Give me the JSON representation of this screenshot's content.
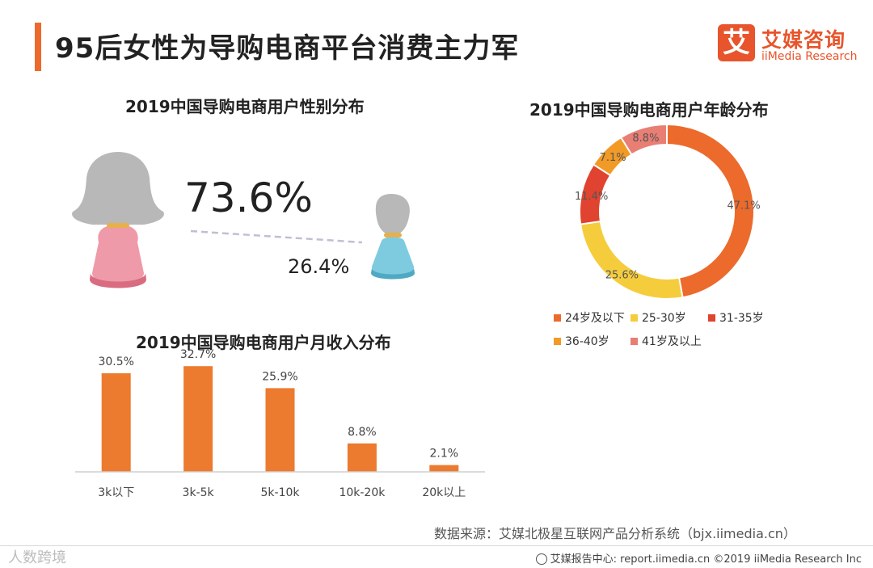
{
  "header": {
    "title": "95后女性为导购电商平台消费主力军"
  },
  "logo": {
    "mark": "艾",
    "cn": "艾媒咨询",
    "en": "iiMedia Research"
  },
  "colors": {
    "accent": "#ec6a2b",
    "female": "#ef9aa8",
    "male": "#7ecbe0",
    "hair": "#b8b8b8",
    "bar": "#ec7a2f"
  },
  "chart_data": [
    {
      "type": "pictogram",
      "title": "2019中国导购电商用户性别分布",
      "labels": [
        "73.6%",
        "26.4%"
      ],
      "categories": [
        "女性",
        "男性"
      ],
      "values": [
        73.6,
        26.4
      ]
    },
    {
      "type": "pie",
      "title": "2019中国导购电商用户年龄分布",
      "categories": [
        "24岁及以下",
        "25-30岁",
        "31-35岁",
        "36-40岁",
        "41岁及以上"
      ],
      "values": [
        47.1,
        25.6,
        11.4,
        7.1,
        8.8
      ],
      "labels": [
        "47.1%",
        "25.6%",
        "11.4%",
        "7.1%",
        "8.8%"
      ],
      "colors": [
        "#ec6a2b",
        "#f5cd3c",
        "#e0432f",
        "#f19a26",
        "#e87e74"
      ],
      "legend_position": "bottom"
    },
    {
      "type": "bar",
      "title": "2019中国导购电商用户月收入分布",
      "categories": [
        "3k以下",
        "3k-5k",
        "5k-10k",
        "10k-20k",
        "20k以上"
      ],
      "values": [
        30.5,
        32.7,
        25.9,
        8.8,
        2.1
      ],
      "labels": [
        "30.5%",
        "32.7%",
        "25.9%",
        "8.8%",
        "2.1%"
      ],
      "ylim": [
        0,
        40
      ],
      "grid": false
    }
  ],
  "source": "数据来源：艾媒北极星互联网产品分析系统（bjx.iimedia.cn）",
  "footer": {
    "text": "艾媒报告中心: report.iimedia.cn  ©2019  iiMedia Research  Inc"
  },
  "watermark": "人数跨境"
}
